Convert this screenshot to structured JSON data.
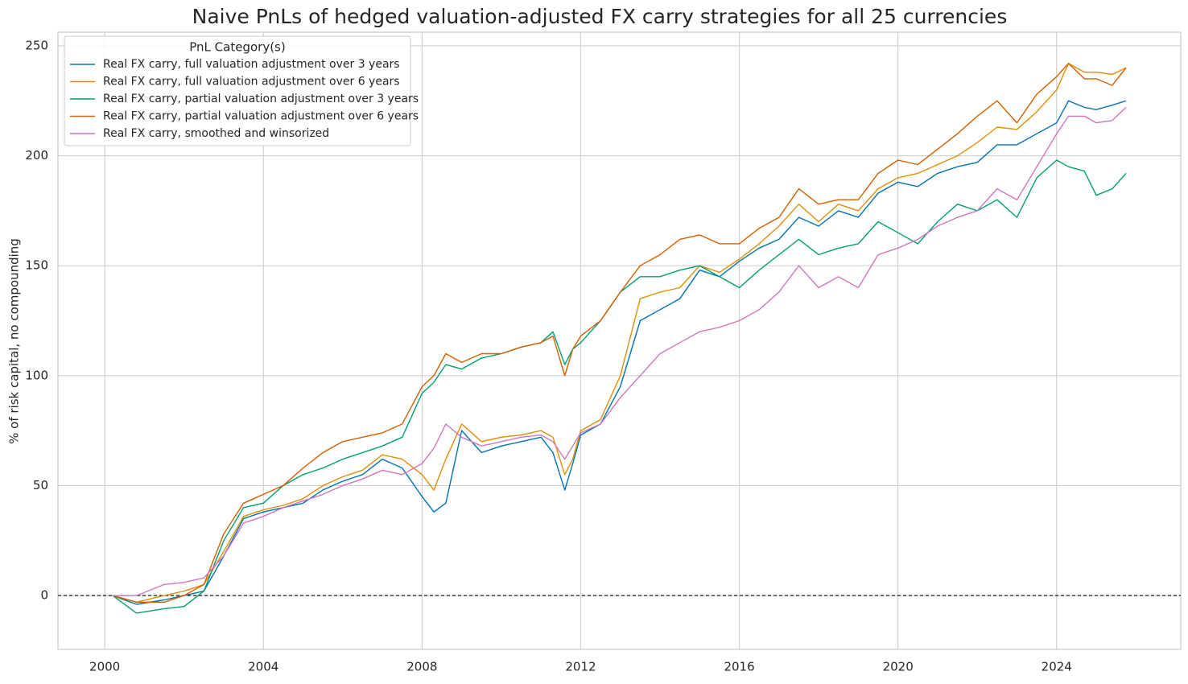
{
  "chart_data": {
    "type": "line",
    "title": "Naive PnLs of hedged valuation-adjusted FX carry strategies for all 25 currencies",
    "y_label": "% of risk capital, no compounding",
    "legend_title": "PnL Category(s)",
    "legend": "upper left",
    "grid": true,
    "hline": 0,
    "x": [
      2000.2,
      2000.8,
      2001.5,
      2002.0,
      2002.5,
      2003.0,
      2003.5,
      2004.0,
      2004.5,
      2005.0,
      2005.5,
      2006.0,
      2006.5,
      2007.0,
      2007.5,
      2008.0,
      2008.3,
      2008.6,
      2009.0,
      2009.5,
      2010.0,
      2010.5,
      2011.0,
      2011.3,
      2011.6,
      2011.8,
      2012.0,
      2012.5,
      2013.0,
      2013.5,
      2014.0,
      2014.5,
      2015.0,
      2015.5,
      2016.0,
      2016.5,
      2017.0,
      2017.5,
      2018.0,
      2018.5,
      2019.0,
      2019.5,
      2020.0,
      2020.5,
      2021.0,
      2021.5,
      2022.0,
      2022.5,
      2023.0,
      2023.5,
      2024.0,
      2024.3,
      2024.7,
      2025.0,
      2025.4,
      2025.75
    ],
    "series": [
      {
        "name": "Real FX carry, full valuation adjustment over 3 years",
        "color": "#0173b2",
        "values": [
          0,
          -4,
          -2,
          0,
          2,
          18,
          35,
          38,
          40,
          42,
          48,
          52,
          55,
          62,
          58,
          45,
          38,
          42,
          75,
          65,
          68,
          70,
          72,
          65,
          48,
          60,
          73,
          78,
          95,
          125,
          130,
          135,
          148,
          145,
          152,
          158,
          162,
          172,
          168,
          175,
          172,
          183,
          188,
          186,
          192,
          195,
          197,
          205,
          205,
          210,
          215,
          225,
          222,
          221,
          223,
          225
        ]
      },
      {
        "name": "Real FX carry, full valuation adjustment over 6 years",
        "color": "#de8f05",
        "values": [
          0,
          -3,
          0,
          2,
          5,
          20,
          36,
          39,
          41,
          44,
          50,
          54,
          57,
          64,
          62,
          55,
          48,
          62,
          78,
          70,
          72,
          73,
          75,
          72,
          55,
          62,
          75,
          80,
          100,
          135,
          138,
          140,
          150,
          147,
          153,
          160,
          168,
          178,
          170,
          178,
          175,
          185,
          190,
          192,
          196,
          200,
          206,
          213,
          212,
          220,
          230,
          242,
          238,
          238,
          237,
          240
        ]
      },
      {
        "name": "Real FX carry, partial valuation adjustment over 3 years",
        "color": "#029e73",
        "values": [
          0,
          -8,
          -6,
          -5,
          2,
          25,
          40,
          42,
          50,
          55,
          58,
          62,
          65,
          68,
          72,
          92,
          97,
          105,
          103,
          108,
          110,
          113,
          115,
          120,
          105,
          112,
          115,
          125,
          138,
          145,
          145,
          148,
          150,
          145,
          140,
          148,
          155,
          162,
          155,
          158,
          160,
          170,
          165,
          160,
          170,
          178,
          175,
          180,
          172,
          190,
          198,
          195,
          193,
          182,
          185,
          192
        ]
      },
      {
        "name": "Real FX carry, partial valuation adjustment over 6 years",
        "color": "#d55e00",
        "values": [
          0,
          -3,
          -3,
          0,
          5,
          28,
          42,
          46,
          50,
          58,
          65,
          70,
          72,
          74,
          78,
          95,
          100,
          110,
          106,
          110,
          110,
          113,
          115,
          118,
          100,
          112,
          118,
          125,
          138,
          150,
          155,
          162,
          164,
          160,
          160,
          167,
          172,
          185,
          178,
          180,
          180,
          192,
          198,
          196,
          203,
          210,
          218,
          225,
          215,
          228,
          236,
          242,
          235,
          235,
          232,
          240
        ]
      },
      {
        "name": "Real FX carry, smoothed and winsorized",
        "color": "#cc78bc",
        "values": [
          0,
          0,
          5,
          6,
          8,
          18,
          33,
          36,
          40,
          43,
          46,
          50,
          53,
          57,
          55,
          60,
          67,
          78,
          72,
          68,
          70,
          72,
          73,
          70,
          62,
          68,
          74,
          78,
          90,
          100,
          110,
          115,
          120,
          122,
          125,
          130,
          138,
          150,
          140,
          145,
          140,
          155,
          158,
          162,
          168,
          172,
          175,
          185,
          180,
          195,
          210,
          218,
          218,
          215,
          216,
          222
        ]
      }
    ],
    "xlim": [
      1998.82,
      2027.13
    ],
    "xticks": [
      2000,
      2004,
      2008,
      2012,
      2016,
      2020,
      2024
    ],
    "ylim": [
      -24.5,
      256.2
    ],
    "yticks": [
      0,
      50,
      100,
      150,
      200,
      250
    ]
  }
}
